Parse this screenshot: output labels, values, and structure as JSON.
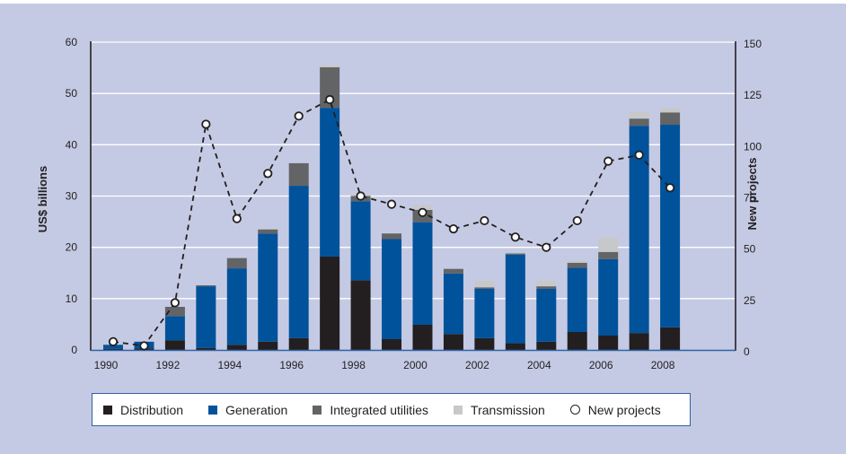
{
  "chart_data": {
    "type": "bar",
    "subtype": "stacked-bar-with-line",
    "title": "",
    "ylabel": "US$ billions",
    "y2label": "New projects",
    "xlabel": "",
    "ylim": [
      0,
      60
    ],
    "y2lim": [
      0,
      150
    ],
    "yticks": [
      0,
      10,
      20,
      30,
      40,
      50,
      60
    ],
    "y2ticks": [
      0,
      25,
      50,
      75,
      100,
      125,
      150
    ],
    "grid": true,
    "legend_position": "bottom",
    "categories": [
      "1990",
      "1991",
      "1992",
      "1993",
      "1994",
      "1995",
      "1996",
      "1997",
      "1998",
      "1999",
      "2000",
      "2001",
      "2002",
      "2003",
      "2004",
      "2005",
      "2006",
      "2007",
      "2008"
    ],
    "xtick_labels": [
      "1990",
      "",
      "1992",
      "",
      "1994",
      "",
      "1996",
      "",
      "1998",
      "",
      "2000",
      "",
      "2002",
      "",
      "2004",
      "",
      "2006",
      "",
      "2008"
    ],
    "series": [
      {
        "name": "Distribution",
        "axis": "left",
        "kind": "bar",
        "color": "#231f20",
        "values": [
          0.2,
          0.3,
          1.9,
          0.4,
          1.0,
          1.6,
          2.3,
          18.2,
          13.6,
          2.1,
          4.9,
          3.1,
          2.3,
          1.3,
          1.6,
          3.5,
          2.8,
          3.3,
          4.4
        ]
      },
      {
        "name": "Generation",
        "axis": "left",
        "kind": "bar",
        "color": "#00529b",
        "values": [
          0.8,
          1.3,
          4.7,
          12.0,
          14.9,
          21.1,
          29.7,
          29.0,
          15.4,
          19.5,
          20.0,
          11.8,
          9.6,
          17.3,
          10.3,
          12.5,
          14.9,
          40.4,
          39.5
        ]
      },
      {
        "name": "Integrated utilities",
        "axis": "left",
        "kind": "bar",
        "color": "#636466",
        "values": [
          0.0,
          0.0,
          1.8,
          0.2,
          2.0,
          0.8,
          4.4,
          7.9,
          1.0,
          1.1,
          2.4,
          0.9,
          0.3,
          0.2,
          0.5,
          1.0,
          1.4,
          1.4,
          2.4
        ]
      },
      {
        "name": "Transmission",
        "axis": "left",
        "kind": "bar",
        "color": "#c7c8ca",
        "values": [
          0.0,
          0.0,
          0.0,
          0.0,
          0.0,
          0.1,
          0.0,
          0.4,
          0.3,
          0.0,
          1.0,
          0.0,
          1.3,
          0.2,
          1.1,
          0.3,
          2.8,
          1.4,
          0.8
        ]
      },
      {
        "name": "New projects",
        "axis": "right",
        "kind": "line",
        "style": "dashed-with-circle-markers",
        "color": "#231f20",
        "values": [
          4,
          2,
          23,
          110,
          64,
          86,
          114,
          122,
          75,
          71,
          67,
          59,
          63,
          55,
          50,
          63,
          92,
          95,
          79
        ]
      }
    ]
  },
  "legend": {
    "items": [
      {
        "label": "Distribution",
        "color": "#231f20",
        "marker": "square"
      },
      {
        "label": "Generation",
        "color": "#00529b",
        "marker": "square"
      },
      {
        "label": "Integrated utilities",
        "color": "#636466",
        "marker": "square"
      },
      {
        "label": "Transmission",
        "color": "#c7c8ca",
        "marker": "square"
      },
      {
        "label": "New projects",
        "color": "#231f20",
        "marker": "open-circle"
      }
    ]
  },
  "colors": {
    "background": "#c5cae4",
    "gridline": "#ffffff",
    "axis": "#231f20",
    "baseline": "#2e62a6"
  }
}
